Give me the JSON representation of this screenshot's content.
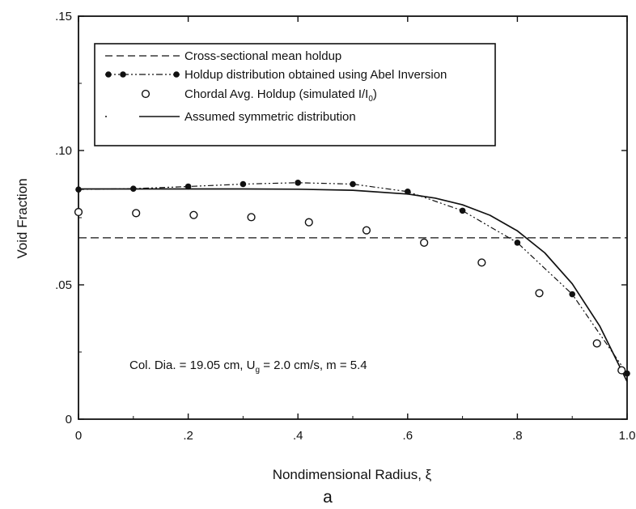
{
  "chart_data": {
    "type": "line",
    "title": "",
    "panel_label": "a",
    "xlabel": "Nondimensional Radius, ξ",
    "ylabel": "Void Fraction",
    "xlim": [
      0,
      1.0
    ],
    "ylim": [
      0,
      0.15
    ],
    "x_ticks": [
      0,
      0.2,
      0.4,
      0.6,
      0.8,
      1.0
    ],
    "x_tick_labels": [
      "0",
      ".2",
      ".4",
      ".6",
      ".8",
      "1.0"
    ],
    "y_ticks": [
      0,
      0.05,
      0.1,
      0.15
    ],
    "y_tick_labels": [
      "0",
      ".05",
      ".10",
      ".15"
    ],
    "grid": false,
    "legend_position": "top-left",
    "annotation": {
      "prefix": "Col. Dia. = 19.05 cm, U",
      "sub": "g",
      "suffix": " = 2.0 cm/s, m = 5.4"
    },
    "series": [
      {
        "name": "Cross-sectional mean holdup",
        "style": "dashed-line",
        "x": [
          0,
          1.0
        ],
        "y": [
          0.0675,
          0.0675
        ]
      },
      {
        "name": "Holdup distribution obtained using Abel Inversion",
        "style": "dash-dot-line-filled-markers",
        "x": [
          0,
          0.1,
          0.2,
          0.3,
          0.4,
          0.5,
          0.6,
          0.7,
          0.8,
          0.9,
          1.0
        ],
        "y": [
          0.0855,
          0.0858,
          0.0866,
          0.0875,
          0.088,
          0.0875,
          0.0847,
          0.0776,
          0.0657,
          0.0465,
          0.017
        ]
      },
      {
        "name": "Chordal Avg. Holdup (simulated I/I",
        "name_sub": "0",
        "name_suffix": ")",
        "style": "open-circles",
        "x": [
          0,
          0.105,
          0.21,
          0.315,
          0.42,
          0.525,
          0.63,
          0.735,
          0.84,
          0.945,
          0.99
        ],
        "y": [
          0.0771,
          0.0767,
          0.076,
          0.0752,
          0.0733,
          0.0703,
          0.0657,
          0.0583,
          0.0469,
          0.0282,
          0.0182
        ]
      },
      {
        "name": "Assumed symmetric distribution",
        "style": "solid-line",
        "x": [
          0,
          0.1,
          0.2,
          0.3,
          0.4,
          0.5,
          0.6,
          0.65,
          0.7,
          0.75,
          0.8,
          0.85,
          0.9,
          0.95,
          1.0
        ],
        "y": [
          0.0857,
          0.0857,
          0.0857,
          0.0857,
          0.0856,
          0.0852,
          0.0838,
          0.0823,
          0.0798,
          0.0759,
          0.0701,
          0.0619,
          0.0504,
          0.0347,
          0.014
        ]
      }
    ]
  }
}
